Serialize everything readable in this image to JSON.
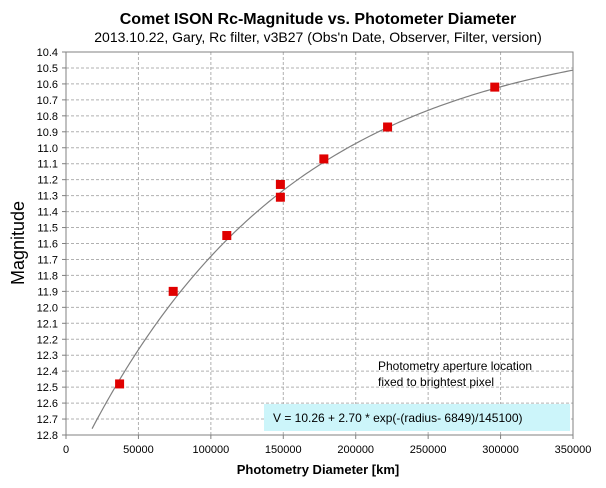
{
  "chart_data": {
    "type": "scatter",
    "title": "Comet ISON Rc-Magnitude vs. Photometer Diameter",
    "subtitle": "2013.10.22,  Gary,  Rc filter,  v3B27 (Obs'n Date, Observer, Filter, version)",
    "xlabel": "Photometry Diameter  [km]",
    "ylabel": "Magnitude",
    "xlim": [
      0,
      350000
    ],
    "ylim": [
      12.8,
      10.4
    ],
    "y_inverted": true,
    "grid": true,
    "x_ticks": [
      "0",
      "50000",
      "100000",
      "150000",
      "200000",
      "250000",
      "300000",
      "350000"
    ],
    "y_ticks": [
      "10.4",
      "10.5",
      "10.6",
      "10.7",
      "10.8",
      "10.9",
      "11.0",
      "11.1",
      "11.2",
      "11.3",
      "11.4",
      "11.5",
      "11.6",
      "11.7",
      "11.8",
      "11.9",
      "12.0",
      "12.1",
      "12.2",
      "12.3",
      "12.4",
      "12.5",
      "12.6",
      "12.7",
      "12.8"
    ],
    "points": [
      {
        "x": 37000,
        "y": 12.48
      },
      {
        "x": 74000,
        "y": 11.9
      },
      {
        "x": 111000,
        "y": 11.55
      },
      {
        "x": 148000,
        "y": 11.23
      },
      {
        "x": 148000,
        "y": 11.31
      },
      {
        "x": 178000,
        "y": 11.07
      },
      {
        "x": 222000,
        "y": 10.87
      },
      {
        "x": 296000,
        "y": 10.62
      }
    ],
    "point_color": "#e00000",
    "fit": {
      "a": 10.26,
      "b": 2.7,
      "c": 6849,
      "d": 145100,
      "x_start": 18000,
      "x_end": 350000,
      "color": "#808080"
    },
    "annotations": {
      "note_line1": "Photometry aperture location",
      "note_line2": "fixed to brightest pixel",
      "formula": "V = 10.26 + 2.70 * exp(-(radius- 6849)/145100)",
      "formula_bg": "#ccf5fa"
    }
  }
}
